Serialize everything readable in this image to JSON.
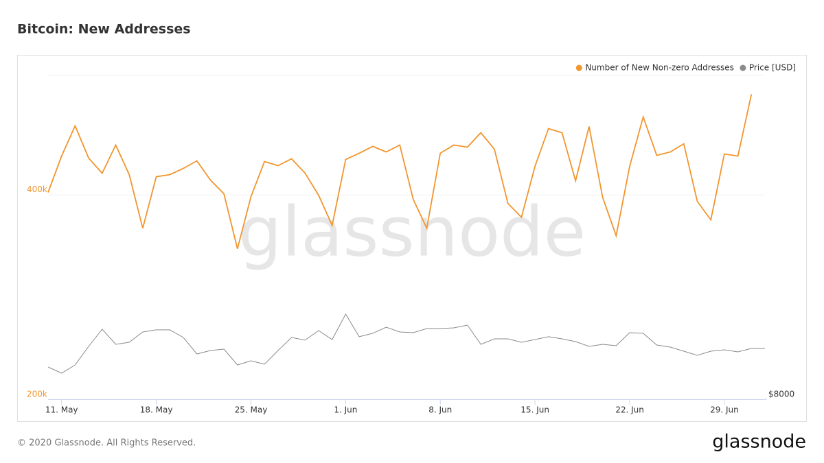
{
  "chart_data": {
    "type": "line",
    "title": "Bitcoin: New Addresses",
    "watermark": "glassnode",
    "footer": "© 2020 Glassnode. All Rights Reserved.",
    "logo": "glassnode",
    "x": [
      "10. May",
      "11. May",
      "12. May",
      "13. May",
      "14. May",
      "15. May",
      "16. May",
      "17. May",
      "18. May",
      "19. May",
      "20. May",
      "21. May",
      "22. May",
      "23. May",
      "24. May",
      "25. May",
      "26. May",
      "27. May",
      "28. May",
      "29. May",
      "30. May",
      "31. May",
      "1. Jun",
      "2. Jun",
      "3. Jun",
      "4. Jun",
      "5. Jun",
      "6. Jun",
      "7. Jun",
      "8. Jun",
      "9. Jun",
      "10. Jun",
      "11. Jun",
      "12. Jun",
      "13. Jun",
      "14. Jun",
      "15. Jun",
      "16. Jun",
      "17. Jun",
      "18. Jun",
      "19. Jun",
      "20. Jun",
      "21. Jun",
      "22. Jun",
      "23. Jun",
      "24. Jun",
      "25. Jun",
      "26. Jun",
      "27. Jun",
      "28. Jun",
      "29. Jun",
      "30. Jun",
      "1. Jul",
      "2. Jul"
    ],
    "xticks": [
      "11. May",
      "18. May",
      "25. May",
      "1. Jun",
      "8. Jun",
      "15. Jun",
      "22. Jun",
      "29. Jun"
    ],
    "series": [
      {
        "name": "Number of New Non-zero Addresses",
        "color": "#f2952d",
        "axis": "y",
        "values": [
          402000,
          437600,
          467100,
          435600,
          420800,
          448300,
          419400,
          367100,
          417400,
          419400,
          425500,
          432900,
          414100,
          400700,
          347000,
          398000,
          432200,
          428200,
          434900,
          420800,
          399300,
          369800,
          434200,
          440300,
          447000,
          441600,
          448300,
          395300,
          367100,
          440300,
          448300,
          446300,
          460400,
          444300,
          391300,
          377800,
          427500,
          464400,
          460400,
          413400,
          466400,
          397300,
          359700,
          427500,
          475800,
          438200,
          441600,
          449600,
          393300,
          375200,
          439600,
          437600,
          498000,
          null
        ]
      },
      {
        "name": "Price [USD]",
        "color": "#8a8a8a",
        "axis": "y2",
        "values": [
          8742,
          8600,
          8790,
          9216,
          9611,
          9264,
          9311,
          9548,
          9596,
          9596,
          9422,
          9043,
          9122,
          9153,
          8790,
          8885,
          8806,
          9122,
          9422,
          9359,
          9580,
          9374,
          9959,
          9438,
          9517,
          9659,
          9548,
          9532,
          9627,
          9627,
          9643,
          9706,
          9264,
          9390,
          9390,
          9311,
          9374,
          9438,
          9390,
          9327,
          9216,
          9264,
          9232,
          9532,
          9517,
          9248,
          9201,
          9106,
          9011,
          9106,
          9137,
          9090,
          9169,
          9169
        ]
      }
    ],
    "ylim": [
      200000,
      517000
    ],
    "yticks": [
      {
        "value": 200000,
        "label": "200k"
      },
      {
        "value": 400000,
        "label": "400k"
      }
    ],
    "y2lim": [
      8000,
      15470
    ],
    "y2ticks": [
      {
        "value": 8000,
        "label": "$8000"
      }
    ],
    "grid": true,
    "legend": "top-right"
  }
}
